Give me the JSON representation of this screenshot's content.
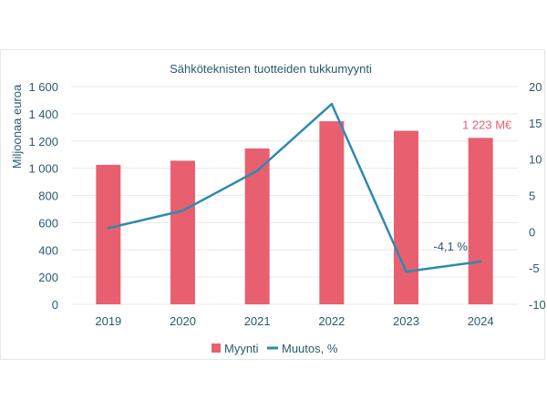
{
  "colors": {
    "bar": "#e8606f",
    "line": "#2e8ab0",
    "axis_text": "#2a5b6e",
    "grid": "#eaeaea",
    "bar_label": "#e8606f"
  },
  "chart_data": {
    "type": "bar",
    "title": "Sähköteknisten tuotteiden tukkumyynti",
    "xlabel": "",
    "ylabel": "Miljoonaa euroa",
    "categories": [
      "2019",
      "2020",
      "2021",
      "2022",
      "2023",
      "2024"
    ],
    "ylim": [
      0,
      1600
    ],
    "yticks": [
      "0",
      "200",
      "400",
      "600",
      "800",
      "1 000",
      "1 200",
      "1 400",
      "1 600"
    ],
    "y2lim": [
      -10,
      20
    ],
    "y2ticks": [
      "-10",
      "-5",
      "0",
      "5",
      "10",
      "15",
      "20"
    ],
    "grid": true,
    "legend_position": "bottom",
    "series": [
      {
        "name": "Myynti",
        "type": "bar",
        "axis": "left",
        "values": [
          1025,
          1055,
          1145,
          1345,
          1275,
          1223
        ]
      },
      {
        "name": "Muutos, %",
        "type": "line",
        "axis": "right",
        "values": [
          0.5,
          2.9,
          8.4,
          17.6,
          -5.5,
          -4.1
        ]
      }
    ],
    "annotations": [
      {
        "text": "1 223 M€",
        "category": "2024",
        "series": "Myynti"
      },
      {
        "text": "-4,1 %",
        "category": "2024",
        "series": "Muutos, %"
      }
    ]
  }
}
